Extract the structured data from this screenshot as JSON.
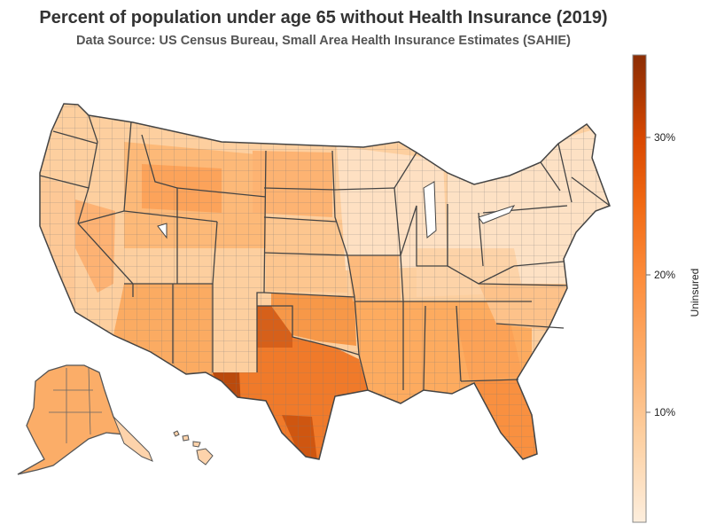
{
  "header": {
    "title": "Percent of population under age 65 without Health Insurance (2019)",
    "subtitle": "Data Source: US Census Bureau, Small Area Health Insurance Estimates (SAHIE)"
  },
  "colorbar": {
    "title": "Uninsured",
    "min": 2,
    "max": 36,
    "ticks": [
      {
        "value": 10,
        "label": "10%"
      },
      {
        "value": 20,
        "label": "20%"
      },
      {
        "value": 30,
        "label": "30%"
      }
    ],
    "colors": [
      "#fdeedd",
      "#fdd0a2",
      "#fdae6b",
      "#fd8d3c",
      "#f16913",
      "#d94801",
      "#a63603",
      "#8c2d04"
    ]
  },
  "colors": {
    "border_county": "#777777",
    "border_state": "#444444"
  }
}
